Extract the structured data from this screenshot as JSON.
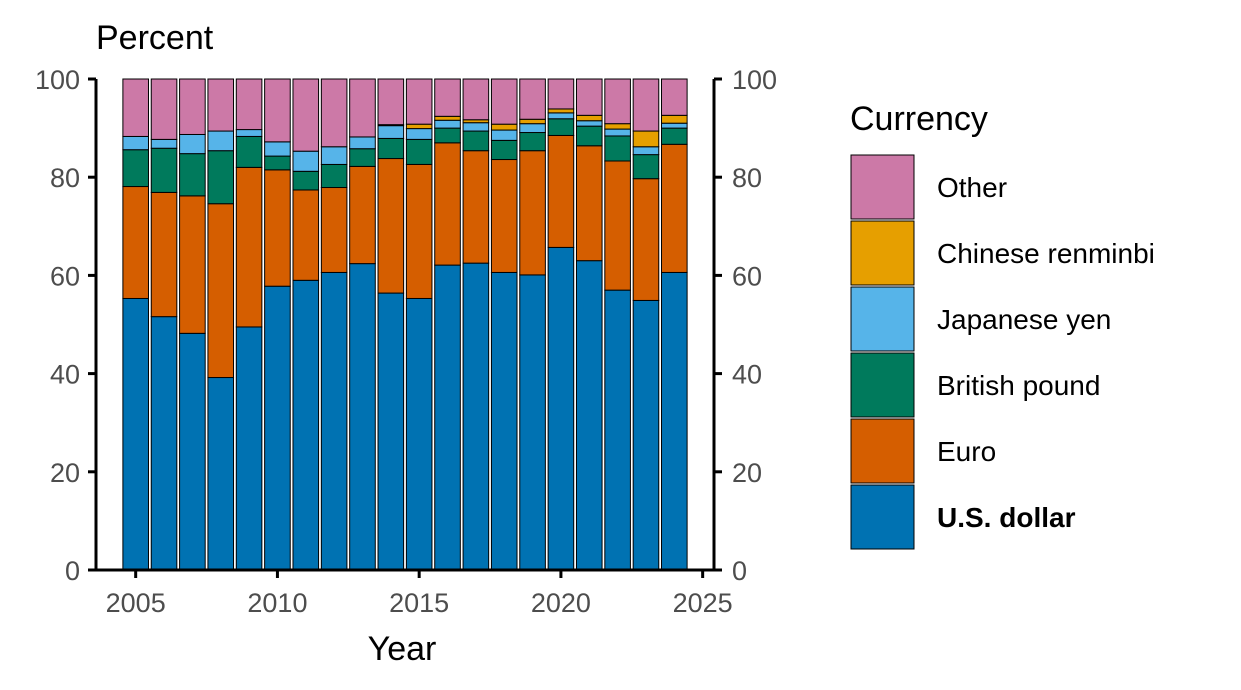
{
  "chart_data": {
    "type": "bar",
    "stacked": true,
    "title": "",
    "ylabel": "Percent",
    "xlabel": "Year",
    "ylim": [
      0,
      100
    ],
    "xlim": [
      2003.6,
      2025.4
    ],
    "yticks": [
      0,
      20,
      40,
      60,
      80,
      100
    ],
    "xticks": [
      2005,
      2010,
      2015,
      2020,
      2025
    ],
    "secondary_y_axis": true,
    "grid": false,
    "legend": {
      "title": "Currency",
      "placement": "right",
      "order": [
        "Other",
        "Chinese renminbi",
        "Japanese yen",
        "British pound",
        "Euro",
        "U.S. dollar"
      ],
      "bold": [
        "U.S. dollar"
      ]
    },
    "x": [
      2005,
      2006,
      2007,
      2008,
      2009,
      2010,
      2011,
      2012,
      2013,
      2014,
      2015,
      2016,
      2017,
      2018,
      2019,
      2020,
      2021,
      2022,
      2023,
      2024
    ],
    "series": [
      {
        "name": "U.S. dollar",
        "color": "#0072B2",
        "values": [
          55.3,
          51.6,
          48.2,
          39.2,
          49.5,
          57.8,
          59.0,
          60.6,
          62.4,
          56.4,
          55.3,
          62.1,
          62.5,
          60.6,
          60.1,
          65.7,
          63.0,
          57.0,
          54.9,
          60.6
        ]
      },
      {
        "name": "Euro",
        "color": "#D55E00",
        "values": [
          22.8,
          25.3,
          28.0,
          35.4,
          32.5,
          23.7,
          18.4,
          17.3,
          19.8,
          27.4,
          27.3,
          24.9,
          22.9,
          23.0,
          25.3,
          22.8,
          23.4,
          26.3,
          24.8,
          26.1
        ]
      },
      {
        "name": "British pound",
        "color": "#007A5C",
        "values": [
          7.5,
          9.0,
          8.6,
          10.8,
          6.3,
          2.8,
          3.8,
          4.7,
          3.6,
          4.1,
          5.1,
          3.0,
          4.0,
          3.9,
          3.7,
          3.4,
          4.0,
          5.1,
          4.9,
          3.3
        ]
      },
      {
        "name": "Japanese yen",
        "color": "#56B4E9",
        "values": [
          2.7,
          1.8,
          3.9,
          4.0,
          1.4,
          2.9,
          4.1,
          3.6,
          2.4,
          2.6,
          2.2,
          1.6,
          1.7,
          2.1,
          1.8,
          1.2,
          1.1,
          1.4,
          1.6,
          1.0
        ]
      },
      {
        "name": "Chinese renminbi",
        "color": "#E69F00",
        "values": [
          0,
          0,
          0,
          0,
          0,
          0,
          0,
          0,
          0,
          0.2,
          0.9,
          0.8,
          0.6,
          1.2,
          0.9,
          0.8,
          1.1,
          1.1,
          3.2,
          1.6
        ]
      },
      {
        "name": "Other",
        "color": "#CC79A7",
        "values": [
          11.7,
          12.3,
          11.3,
          10.6,
          10.3,
          12.8,
          14.7,
          13.8,
          11.8,
          9.3,
          9.2,
          7.6,
          8.3,
          9.2,
          8.2,
          6.1,
          7.4,
          9.1,
          10.6,
          7.4
        ]
      }
    ]
  }
}
